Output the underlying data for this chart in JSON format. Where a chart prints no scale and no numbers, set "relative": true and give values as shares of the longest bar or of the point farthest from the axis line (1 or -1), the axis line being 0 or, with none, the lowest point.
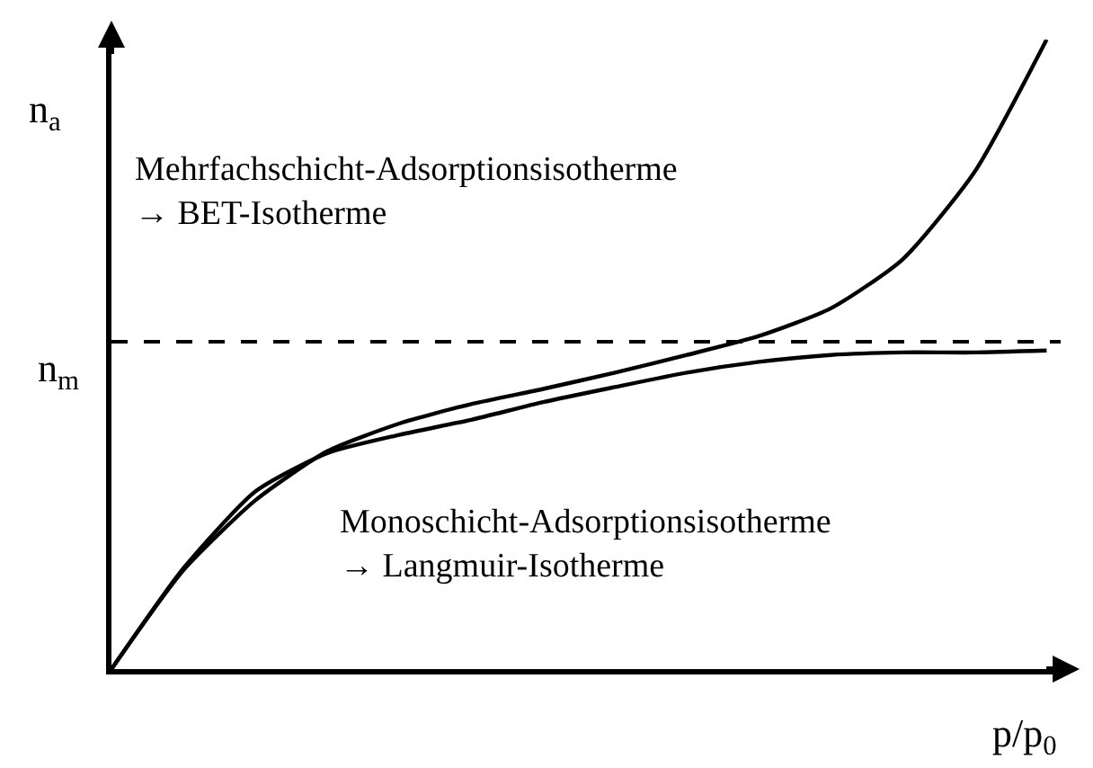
{
  "chart_data": {
    "type": "line",
    "relative": true,
    "xlabel": "p/p$_{0}$",
    "ylabel": "n$_{a}$",
    "categories": [
      null,
      null,
      null,
      null,
      null,
      null,
      null,
      null,
      null,
      null,
      null,
      null,
      null,
      null
    ],
    "series": [
      {
        "color": "#000000",
        "values": [
          0,
          0.157,
          0.268,
          0.346,
          0.39,
          0.421,
          0.445,
          0.471,
          0.499,
          0.529,
          0.573,
          0.651,
          0.79,
          1
        ]
      },
      {
        "color": "#000000",
        "values": [
          0,
          0.16,
          0.282,
          0.343,
          0.372,
          0.396,
          0.424,
          0.448,
          0.471,
          0.488,
          0.499,
          0.503,
          0.503,
          0.506
        ]
      }
    ],
    "ref_lines": [
      {
        "axis": "y",
        "value": 0.52,
        "label": "n$_{m}$",
        "color": "#000000",
        "line_style": "dashed"
      }
    ],
    "annotations": [
      "Mehrfachschicht-Adsorptionsisotherme\n→ BET-Isotherme",
      "Monoschicht-Adsorptionsisotherme\n→ Langmuir-Isotherme"
    ],
    "marker": "none",
    "line_style": "solid"
  }
}
